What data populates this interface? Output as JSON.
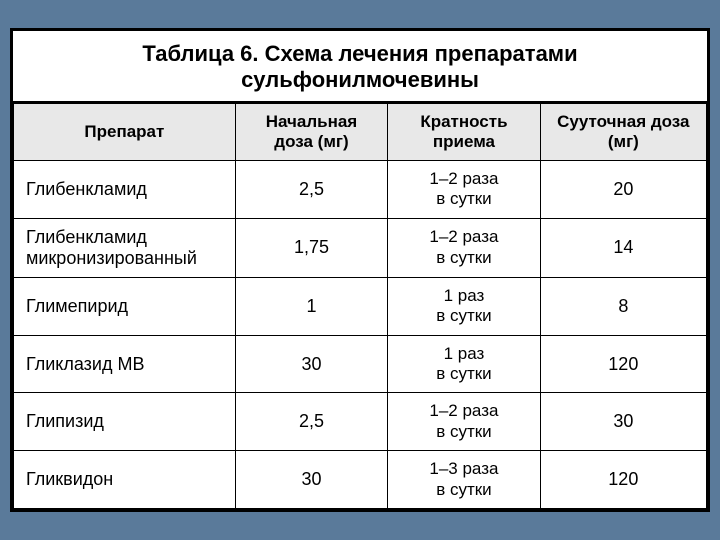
{
  "table": {
    "type": "table",
    "title": "Таблица 6. Схема лечения препаратами сульфонилмочевины",
    "background_color": "#ffffff",
    "border_color": "#000000",
    "header_bg": "#e8e8e8",
    "outer_bg": "#5a7a9a",
    "title_fontsize": 22,
    "header_fontsize": 17,
    "cell_fontsize": 18,
    "columns": [
      {
        "key": "drug",
        "label": "Препарат",
        "width_pct": 32,
        "align": "left"
      },
      {
        "key": "start_dose",
        "label": "Начальная доза (мг)",
        "width_pct": 22,
        "align": "center"
      },
      {
        "key": "frequency",
        "label": "Кратность приема",
        "width_pct": 22,
        "align": "center"
      },
      {
        "key": "daily_dose",
        "label": "Сууточная доза (мг)",
        "width_pct": 24,
        "align": "center"
      }
    ],
    "rows": [
      {
        "drug": "Глибенкламид",
        "start_dose": "2,5",
        "freq_l1": "1–2 раза",
        "freq_l2": "в сутки",
        "daily_dose": "20"
      },
      {
        "drug": "Глибенкламид микронизированный",
        "start_dose": "1,75",
        "freq_l1": "1–2 раза",
        "freq_l2": "в сутки",
        "daily_dose": "14"
      },
      {
        "drug": "Глимепирид",
        "start_dose": "1",
        "freq_l1": "1 раз",
        "freq_l2": "в сутки",
        "daily_dose": "8"
      },
      {
        "drug": "Гликлазид МВ",
        "start_dose": "30",
        "freq_l1": "1 раз",
        "freq_l2": "в сутки",
        "daily_dose": "120"
      },
      {
        "drug": "Глипизид",
        "start_dose": "2,5",
        "freq_l1": "1–2 раза",
        "freq_l2": "в сутки",
        "daily_dose": "30"
      },
      {
        "drug": "Гликвидон",
        "start_dose": "30",
        "freq_l1": "1–3 раза",
        "freq_l2": "в сутки",
        "daily_dose": "120"
      }
    ]
  }
}
